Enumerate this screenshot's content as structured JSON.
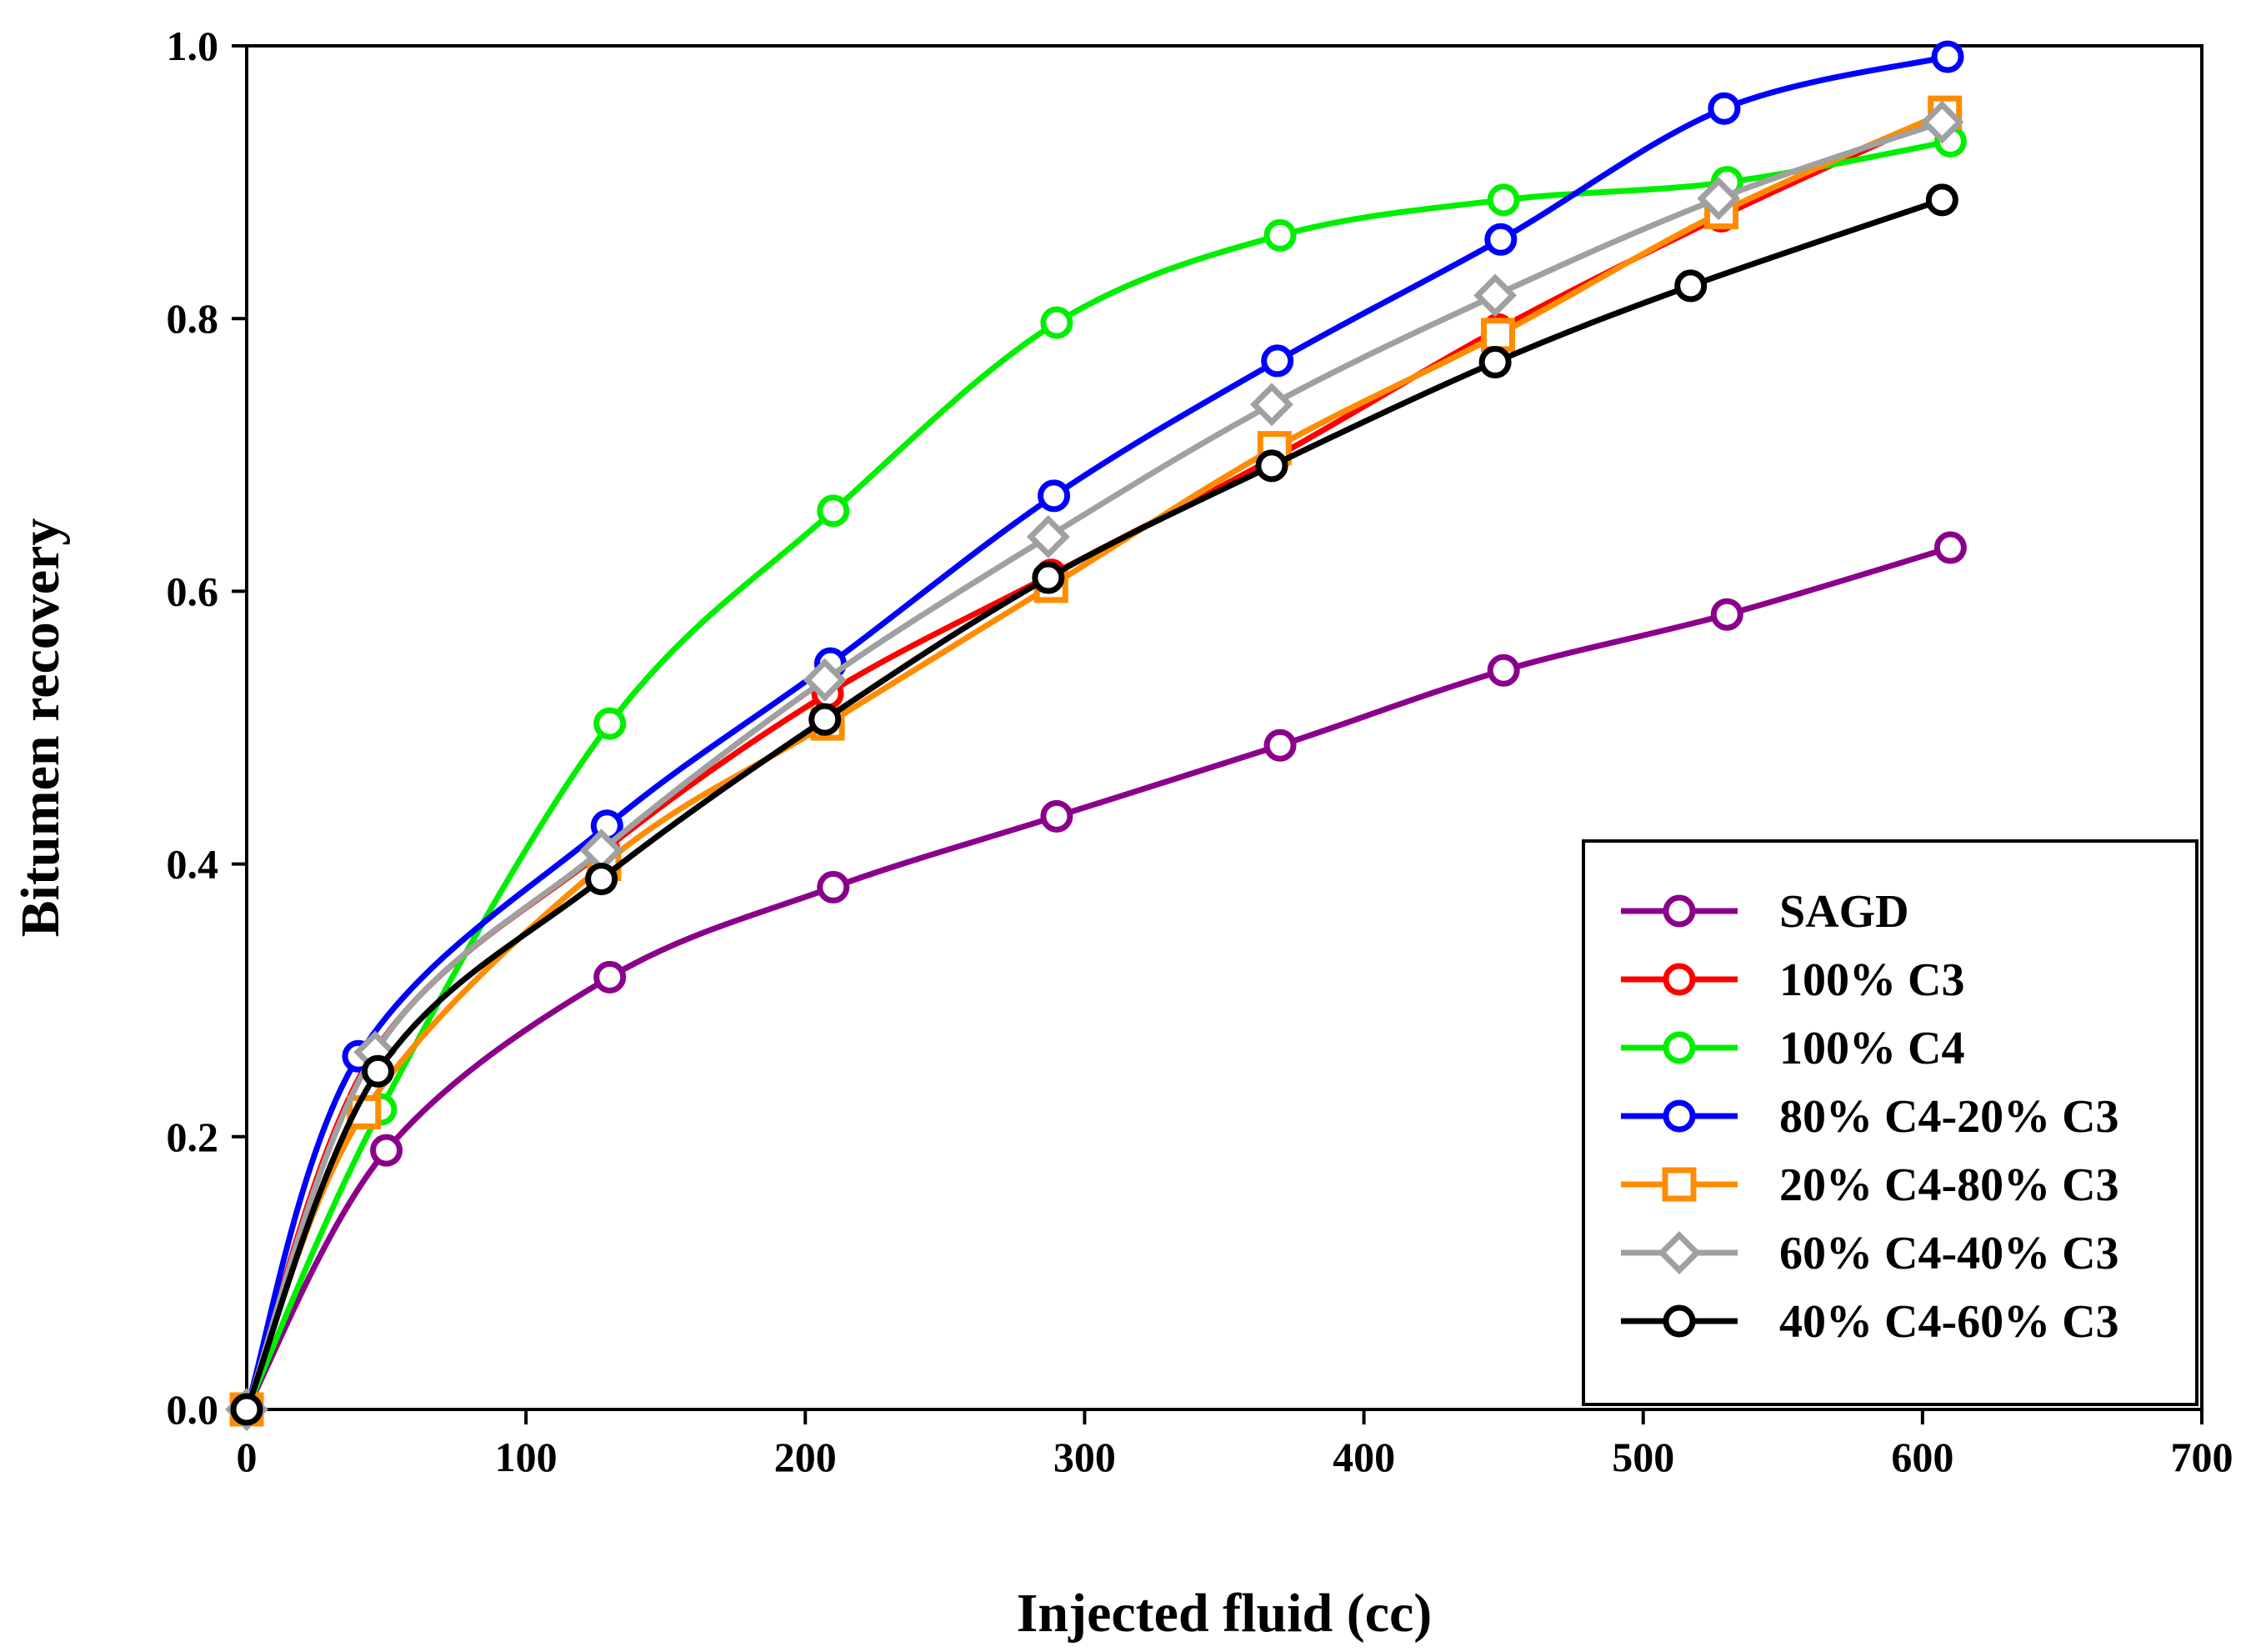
{
  "chart_data": {
    "type": "line",
    "title": "",
    "xlabel": "Injected fluid (cc)",
    "ylabel": "Bitumen recovery",
    "xlim": [
      0,
      700
    ],
    "ylim": [
      0.0,
      1.0
    ],
    "xticks": [
      0,
      100,
      200,
      300,
      400,
      500,
      600,
      700
    ],
    "yticks": [
      0.0,
      0.2,
      0.4,
      0.6,
      0.8,
      1.0
    ],
    "xtick_labels": [
      "0",
      "100",
      "200",
      "300",
      "400",
      "500",
      "600",
      "700"
    ],
    "ytick_labels": [
      "0.0",
      "0.2",
      "0.4",
      "0.6",
      "0.8",
      "1.0"
    ],
    "grid": false,
    "legend_position": "bottom-right",
    "series": [
      {
        "name": "SAGD",
        "color": "#8B008B",
        "marker": "circle",
        "x": [
          0,
          50,
          130,
          210,
          290,
          370,
          450,
          530,
          610
        ],
        "y": [
          0.0,
          0.19,
          0.317,
          0.383,
          0.435,
          0.487,
          0.542,
          0.583,
          0.632
        ]
      },
      {
        "name": "100% C3",
        "color": "#FF0000",
        "marker": "circle",
        "x": [
          0,
          45,
          128,
          208,
          288,
          368,
          448,
          528,
          608
        ],
        "y": [
          0.0,
          0.26,
          0.41,
          0.525,
          0.612,
          0.698,
          0.792,
          0.875,
          0.95
        ]
      },
      {
        "name": "100% C4",
        "color": "#00EE00",
        "marker": "circle",
        "x": [
          0,
          48,
          130,
          210,
          290,
          370,
          450,
          530,
          610
        ],
        "y": [
          0.0,
          0.22,
          0.503,
          0.659,
          0.797,
          0.861,
          0.887,
          0.9,
          0.93
        ]
      },
      {
        "name": "80% C4-20% C3",
        "color": "#0000FF",
        "marker": "circle",
        "x": [
          0,
          40,
          129,
          209,
          289,
          369,
          449,
          529,
          609
        ],
        "y": [
          0.0,
          0.259,
          0.428,
          0.547,
          0.67,
          0.769,
          0.858,
          0.954,
          0.992
        ]
      },
      {
        "name": "20% C4-80% C3",
        "color": "#FF8C00",
        "marker": "square",
        "x": [
          0,
          42,
          128,
          208,
          288,
          368,
          448,
          528,
          608
        ],
        "y": [
          0.0,
          0.218,
          0.4,
          0.503,
          0.604,
          0.705,
          0.788,
          0.878,
          0.951
        ]
      },
      {
        "name": "60% C4-40% C3",
        "color": "#A0A0A0",
        "marker": "diamond",
        "x": [
          0,
          46,
          127,
          207,
          287,
          367,
          447,
          527,
          607
        ],
        "y": [
          0.0,
          0.262,
          0.41,
          0.535,
          0.64,
          0.737,
          0.817,
          0.888,
          0.944
        ]
      },
      {
        "name": "40% C4-60% C3",
        "color": "#000000",
        "marker": "circle",
        "x": [
          0,
          47,
          127,
          207,
          287,
          367,
          447,
          517,
          607
        ],
        "y": [
          0.0,
          0.248,
          0.389,
          0.506,
          0.61,
          0.692,
          0.768,
          0.824,
          0.887
        ]
      }
    ]
  }
}
